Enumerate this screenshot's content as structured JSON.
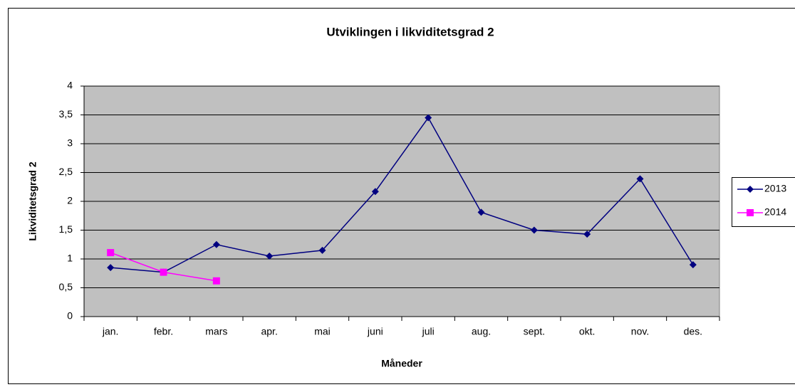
{
  "chart_data": {
    "type": "line",
    "title": "Utviklingen i likviditetsgrad 2",
    "x_label": "Måneder",
    "y_label": "Likviditetsgrad 2",
    "categories": [
      "jan.",
      "febr.",
      "mars",
      "apr.",
      "mai",
      "juni",
      "juli",
      "aug.",
      "sept.",
      "okt.",
      "nov.",
      "des."
    ],
    "series": [
      {
        "name": "2013",
        "color": "#000080",
        "marker": "diamond",
        "values": [
          0.85,
          0.77,
          1.25,
          1.05,
          1.15,
          2.17,
          3.45,
          1.81,
          1.5,
          1.43,
          2.39,
          0.9
        ]
      },
      {
        "name": "2014",
        "color": "#ff00ff",
        "marker": "square",
        "values": [
          1.11,
          0.77,
          0.62,
          null,
          null,
          null,
          null,
          null,
          null,
          null,
          null,
          null
        ]
      }
    ],
    "ylim": [
      0,
      4
    ],
    "yticks": [
      0,
      {
        "value": 0.5,
        "label": "0,5"
      },
      1,
      {
        "value": 1.5,
        "label": "1,5"
      },
      2,
      {
        "value": 2.5,
        "label": "2,5"
      },
      3,
      {
        "value": 3.5,
        "label": "3,5"
      },
      4
    ],
    "grid": true,
    "plot_background": "#c0c0c0",
    "legend": "right"
  }
}
